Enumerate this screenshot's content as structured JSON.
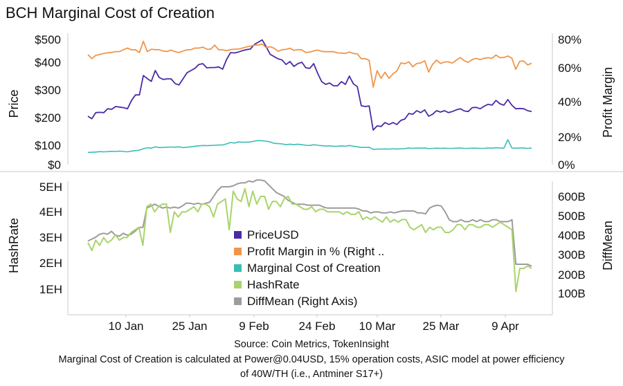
{
  "title": "BCH Marginal Cost of Creation",
  "colors": {
    "price": "#4a2aa6",
    "profit": "#f0954a",
    "cost": "#3bbcb6",
    "hash": "#a9d36b",
    "diff": "#9c9c9c",
    "axis": "#c8c8c8"
  },
  "chart_data": [
    {
      "type": "line",
      "panel": "top",
      "ylabel": "Price",
      "ylabel_right": "Profit Margin",
      "ylim": [
        0,
        500
      ],
      "yticks": [
        "$0",
        "$100",
        "$200",
        "$300",
        "$400",
        "$500"
      ],
      "ylim_right": [
        0,
        0.8
      ],
      "yticks_right": [
        "0%",
        "20%",
        "40%",
        "60%",
        "80%"
      ],
      "series": [
        {
          "name": "PriceUSD",
          "axis": "left",
          "values": [
            205,
            196,
            218,
            219,
            218,
            232,
            230,
            240,
            238,
            236,
            232,
            262,
            282,
            282,
            352,
            341,
            331,
            370,
            345,
            338,
            340,
            340,
            323,
            318,
            340,
            362,
            370,
            378,
            392,
            395,
            380,
            381,
            381,
            383,
            375,
            412,
            442,
            441,
            445,
            451,
            455,
            458,
            478,
            488,
            498,
            468,
            435,
            425,
            415,
            410,
            392,
            403,
            385,
            395,
            400,
            380,
            378,
            395,
            360,
            330,
            320,
            325,
            315,
            315,
            330,
            320,
            350,
            322,
            312,
            243,
            240,
            242,
            155,
            170,
            168,
            182,
            175,
            182,
            175,
            190,
            195,
            215,
            212,
            225,
            218,
            228,
            205,
            212,
            225,
            220,
            225,
            218,
            222,
            228,
            232,
            224,
            222,
            236,
            237,
            232,
            241,
            248,
            245,
            262,
            250,
            245,
            265,
            245,
            232,
            233,
            232,
            225,
            222
          ]
        },
        {
          "name": "Profit Margin in % (Right ..",
          "axis": "right",
          "values": [
            0.693,
            0.665,
            0.688,
            0.694,
            0.701,
            0.706,
            0.709,
            0.714,
            0.714,
            0.728,
            0.739,
            0.727,
            0.728,
            0.707,
            0.787,
            0.714,
            0.731,
            0.728,
            0.728,
            0.718,
            0.715,
            0.725,
            0.713,
            0.708,
            0.718,
            0.727,
            0.728,
            0.739,
            0.739,
            0.746,
            0.731,
            0.731,
            0.76,
            0.727,
            0.727,
            0.721,
            0.728,
            0.731,
            0.732,
            0.739,
            0.747,
            0.752,
            0.76,
            0.76,
            0.768,
            0.742,
            0.749,
            0.738,
            0.716,
            0.728,
            0.73,
            0.738,
            0.723,
            0.728,
            0.726,
            0.708,
            0.711,
            0.719,
            0.725,
            0.716,
            0.713,
            0.714,
            0.713,
            0.705,
            0.704,
            0.701,
            0.711,
            0.701,
            0.698,
            0.664,
            0.665,
            0.652,
            0.486,
            0.583,
            0.538,
            0.574,
            0.538,
            0.564,
            0.582,
            0.634,
            0.629,
            0.642,
            0.607,
            0.63,
            0.634,
            0.65,
            0.575,
            0.624,
            0.654,
            0.63,
            0.641,
            0.642,
            0.633,
            0.654,
            0.672,
            0.65,
            0.638,
            0.658,
            0.667,
            0.658,
            0.667,
            0.671,
            0.667,
            0.69,
            0.671,
            0.672,
            0.683,
            0.668,
            0.591,
            0.646,
            0.648,
            0.62,
            0.632
          ]
        },
        {
          "name": "Marginal Cost of Creation",
          "axis": "left",
          "values": [
            63,
            64,
            65,
            67,
            66,
            67,
            69,
            68,
            70,
            68,
            66,
            70,
            72,
            75,
            82,
            87,
            85,
            92,
            88,
            89,
            90,
            91,
            90,
            92,
            88,
            90,
            92,
            95,
            97,
            99,
            98,
            99,
            100,
            101,
            101,
            105,
            110,
            108,
            112,
            111,
            111,
            112,
            115,
            117,
            116,
            115,
            112,
            107,
            106,
            105,
            102,
            104,
            102,
            104,
            102,
            100,
            99,
            102,
            100,
            98,
            96,
            97,
            95,
            95,
            97,
            95,
            99,
            95,
            92,
            89,
            89,
            90,
            79,
            80,
            80,
            81,
            80,
            82,
            80,
            82,
            83,
            86,
            84,
            86,
            85,
            86,
            83,
            84,
            85,
            84,
            85,
            84,
            84,
            85,
            86,
            84,
            84,
            85,
            85,
            84,
            84,
            86,
            85,
            87,
            86,
            85,
            120,
            86,
            85,
            86,
            86,
            84,
            86
          ]
        }
      ]
    },
    {
      "type": "line",
      "panel": "bottom",
      "x_labels": [
        "10 Jan",
        "25 Jan",
        "9 Feb",
        "24 Feb",
        "10 Mar",
        "25 Mar",
        "9 Apr"
      ],
      "ylabel": "HashRate",
      "ylabel_right": "DiffMean",
      "ylim": [
        0,
        5.5
      ],
      "yticks": [
        "1EH",
        "2EH",
        "3EH",
        "4EH",
        "5EH"
      ],
      "ylim_right": [
        0,
        720
      ],
      "yticks_right": [
        "100B",
        "200B",
        "300B",
        "400B",
        "500B",
        "600B"
      ],
      "series": [
        {
          "name": "HashRate",
          "axis": "left",
          "values": [
            2.8,
            2.5,
            2.9,
            2.7,
            3.0,
            2.8,
            2.9,
            3.1,
            2.9,
            3.0,
            3.0,
            3.2,
            3.3,
            3.4,
            2.7,
            4.2,
            4.3,
            4.0,
            4.2,
            4.3,
            4.3,
            3.2,
            4.0,
            3.8,
            4.0,
            4.0,
            4.1,
            4.2,
            4.0,
            4.3,
            4.3,
            4.2,
            3.8,
            4.3,
            4.4,
            4.5,
            3.3,
            4.8,
            4.5,
            4.4,
            4.9,
            4.2,
            4.8,
            4.3,
            4.6,
            4.6,
            4.1,
            4.4,
            4.4,
            4.2,
            4.5,
            4.6,
            4.3,
            4.3,
            4.2,
            4.1,
            4.1,
            4.2,
            4.0,
            4.1,
            4.1,
            4.0,
            4.0,
            4.0,
            4.0,
            3.9,
            4.0,
            3.9,
            3.9,
            4.0,
            3.7,
            3.8,
            3.7,
            3.8,
            3.7,
            3.6,
            3.8,
            3.6,
            3.7,
            3.6,
            3.7,
            3.7,
            3.4,
            3.3,
            3.4,
            3.5,
            3.2,
            3.4,
            3.3,
            3.4,
            3.4,
            3.2,
            3.2,
            3.3,
            3.5,
            3.5,
            3.3,
            3.5,
            3.5,
            3.4,
            3.4,
            3.5,
            3.5,
            3.4,
            3.5,
            3.6,
            3.5,
            3.4,
            3.3,
            0.9,
            1.8,
            1.8,
            1.9,
            1.8
          ]
        },
        {
          "name": "DiffMean (Right Axis)",
          "axis": "right",
          "values": [
            370,
            380,
            390,
            405,
            410,
            405,
            420,
            400,
            395,
            410,
            400,
            405,
            420,
            440,
            440,
            540,
            550,
            560,
            550,
            540,
            545,
            540,
            545,
            540,
            550,
            565,
            565,
            560,
            565,
            560,
            565,
            570,
            600,
            630,
            650,
            650,
            650,
            655,
            665,
            670,
            670,
            680,
            675,
            685,
            685,
            680,
            660,
            640,
            620,
            610,
            600,
            580,
            570,
            560,
            560,
            560,
            555,
            555,
            555,
            555,
            545,
            540,
            540,
            540,
            540,
            540,
            540,
            540,
            540,
            535,
            525,
            525,
            515,
            520,
            520,
            515,
            515,
            520,
            515,
            520,
            525,
            525,
            525,
            525,
            515,
            515,
            510,
            540,
            550,
            555,
            550,
            520,
            480,
            470,
            470,
            480,
            470,
            470,
            480,
            470,
            480,
            470,
            470,
            480,
            480,
            470,
            470,
            470,
            480,
            250,
            250,
            250,
            250,
            240
          ]
        }
      ]
    }
  ],
  "source_lines": [
    "Source: Coin Metrics, TokenInsight",
    "Marginal Cost of Creation is calculated at Power@0.04USD, 15% operation costs, ASIC model at power efficiency",
    "of 40W/TH (i.e., Antminer S17+)"
  ]
}
